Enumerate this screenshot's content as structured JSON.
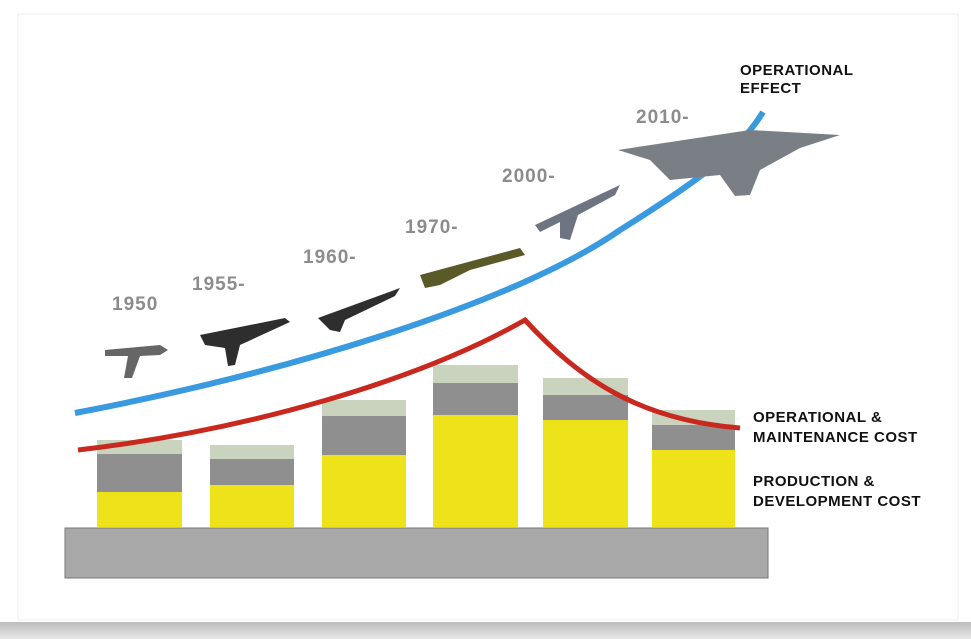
{
  "years": [
    "1950",
    "1955-",
    "1960-",
    "1970-",
    "2000-",
    "2010-"
  ],
  "effect_label": [
    "OPERATIONAL",
    "EFFECT"
  ],
  "om_cost_label": [
    "OPERATIONAL &",
    "MAINTENANCE COST"
  ],
  "pd_cost_label": [
    "PRODUCTION &",
    "DEVELOPMENT COST"
  ]
}
